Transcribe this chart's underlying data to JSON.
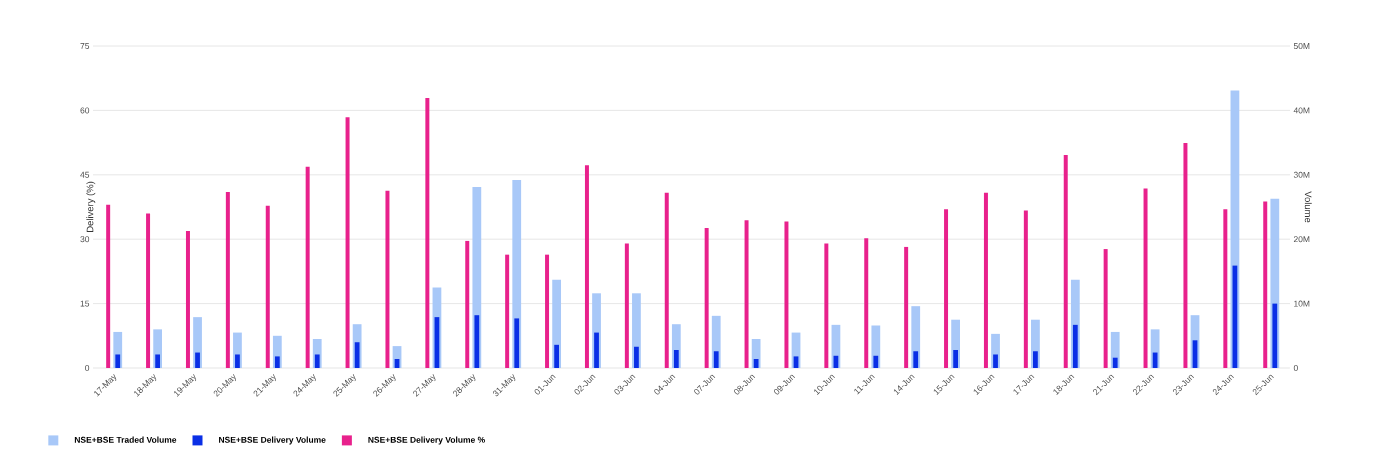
{
  "chart_data": {
    "type": "bar",
    "categories": [
      "17-May",
      "18-May",
      "19-May",
      "20-May",
      "21-May",
      "24-May",
      "25-May",
      "26-May",
      "27-May",
      "28-May",
      "31-May",
      "01-Jun",
      "02-Jun",
      "03-Jun",
      "04-Jun",
      "07-Jun",
      "08-Jun",
      "09-Jun",
      "10-Jun",
      "11-Jun",
      "14-Jun",
      "15-Jun",
      "16-Jun",
      "17-Jun",
      "18-Jun",
      "21-Jun",
      "22-Jun",
      "23-Jun",
      "24-Jun",
      "25-Jun"
    ],
    "series": [
      {
        "name": "NSE+BSE Traded Volume",
        "color": "#a8c8f8",
        "axis": "y2",
        "values": [
          5.6,
          6.0,
          7.9,
          5.5,
          5.0,
          4.5,
          6.8,
          3.4,
          12.5,
          28.1,
          29.2,
          13.7,
          11.6,
          11.6,
          6.8,
          8.1,
          4.5,
          5.5,
          6.7,
          6.6,
          9.6,
          7.5,
          5.3,
          7.5,
          13.7,
          5.6,
          6.0,
          8.2,
          43.1,
          26.3
        ]
      },
      {
        "name": "NSE+BSE Delivery Volume",
        "color": "#0a2fe6",
        "axis": "y2",
        "values": [
          2.1,
          2.1,
          2.4,
          2.1,
          1.8,
          2.1,
          4.0,
          1.4,
          7.9,
          8.2,
          7.7,
          3.6,
          5.5,
          3.3,
          2.8,
          2.6,
          1.4,
          1.8,
          1.9,
          1.9,
          2.6,
          2.8,
          2.1,
          2.6,
          6.7,
          1.6,
          2.4,
          4.3,
          15.9,
          10.0
        ]
      },
      {
        "name": "NSE+BSE Delivery Volume %",
        "color": "#e8218c",
        "axis": "y",
        "values": [
          38,
          36,
          31.9,
          41,
          37.8,
          46.9,
          58.4,
          41.3,
          62.9,
          29.6,
          26.4,
          26.4,
          47.2,
          29,
          40.8,
          32.6,
          34.4,
          34.1,
          29,
          30.2,
          28.2,
          37,
          40.8,
          36.7,
          49.6,
          27.7,
          41.8,
          52.4,
          37,
          38.8
        ]
      }
    ],
    "ylabel": "Delivery (%)",
    "y2label": "Volume",
    "ylim": [
      0,
      75
    ],
    "yticks": [
      0,
      15,
      30,
      45,
      60,
      75
    ],
    "y2lim": [
      0,
      50
    ],
    "y2ticks": [
      0,
      {
        "value": 10,
        "label": "10M"
      },
      {
        "value": 20,
        "label": "20M"
      },
      {
        "value": 30,
        "label": "30M"
      },
      {
        "value": 40,
        "label": "40M"
      },
      {
        "value": 50,
        "label": "50M"
      }
    ],
    "grid": "y",
    "legend": "bottom left"
  }
}
